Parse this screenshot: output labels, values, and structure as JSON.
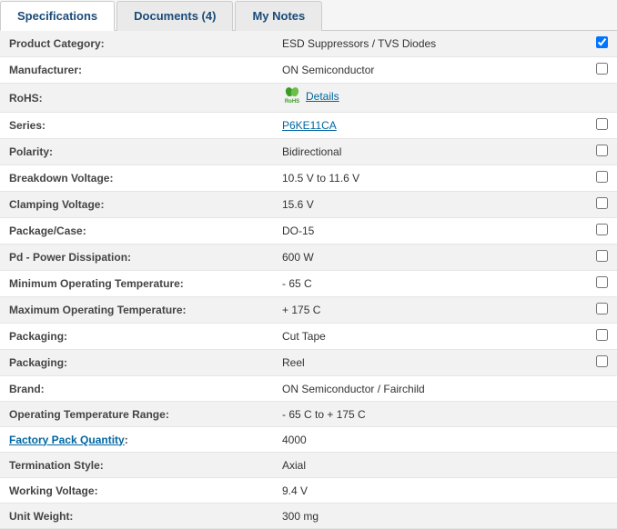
{
  "tabs": {
    "spec": "Specifications",
    "docs": "Documents (4)",
    "notes": "My Notes",
    "activeIndex": 0
  },
  "rohs_icon_label": "RoHS",
  "rows": [
    {
      "label": "Product Category:",
      "value": "ESD Suppressors / TVS Diodes",
      "checked": true,
      "hasCheckbox": true
    },
    {
      "label": "Manufacturer:",
      "value": "ON Semiconductor",
      "checked": false,
      "hasCheckbox": true
    },
    {
      "label": "RoHS:",
      "value": "Details",
      "valueIsLink": true,
      "rohsIcon": true,
      "hasCheckbox": false
    },
    {
      "label": "Series:",
      "value": "P6KE11CA",
      "valueIsLink": true,
      "checked": false,
      "hasCheckbox": true
    },
    {
      "label": "Polarity:",
      "value": "Bidirectional",
      "checked": false,
      "hasCheckbox": true
    },
    {
      "label": "Breakdown Voltage:",
      "value": "10.5 V to 11.6 V",
      "checked": false,
      "hasCheckbox": true
    },
    {
      "label": "Clamping Voltage:",
      "value": "15.6 V",
      "checked": false,
      "hasCheckbox": true
    },
    {
      "label": "Package/Case:",
      "value": "DO-15",
      "checked": false,
      "hasCheckbox": true
    },
    {
      "label": "Pd - Power Dissipation:",
      "value": "600 W",
      "checked": false,
      "hasCheckbox": true
    },
    {
      "label": "Minimum Operating Temperature:",
      "value": "- 65 C",
      "checked": false,
      "hasCheckbox": true
    },
    {
      "label": "Maximum Operating Temperature:",
      "value": "+ 175 C",
      "checked": false,
      "hasCheckbox": true
    },
    {
      "label": "Packaging:",
      "value": "Cut Tape",
      "checked": false,
      "hasCheckbox": true
    },
    {
      "label": "Packaging:",
      "value": "Reel",
      "checked": false,
      "hasCheckbox": true
    },
    {
      "label": "Brand:",
      "value": "ON Semiconductor / Fairchild",
      "hasCheckbox": false
    },
    {
      "label": "Operating Temperature Range:",
      "value": "- 65 C to + 175 C",
      "hasCheckbox": false
    },
    {
      "label": "Factory Pack Quantity:",
      "labelIsLink": true,
      "value": "4000",
      "hasCheckbox": false
    },
    {
      "label": "Termination Style:",
      "value": "Axial",
      "hasCheckbox": false
    },
    {
      "label": "Working Voltage:",
      "value": "9.4 V",
      "hasCheckbox": false
    },
    {
      "label": "Unit Weight:",
      "value": "300 mg",
      "hasCheckbox": false
    }
  ]
}
